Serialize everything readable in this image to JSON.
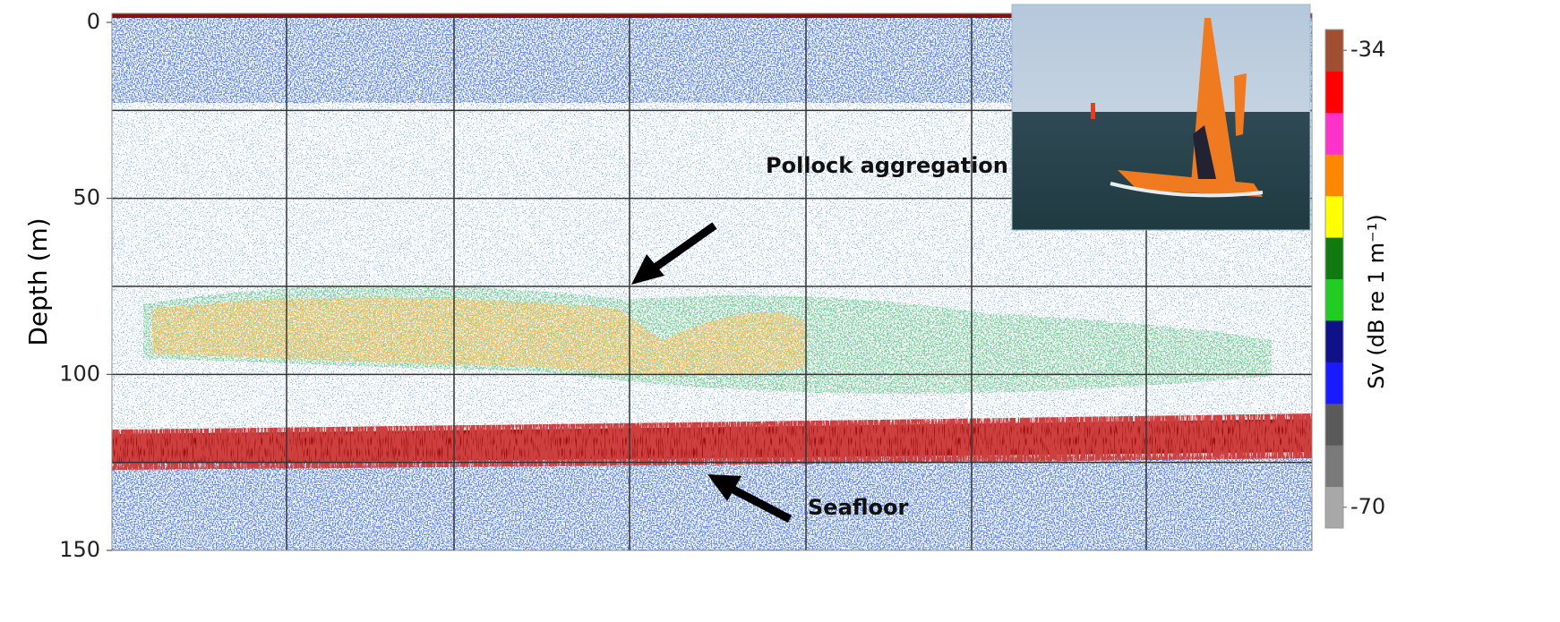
{
  "chart_data": {
    "type": "echogram",
    "y_label": "Depth (m)",
    "ylim": [
      0,
      150
    ],
    "yticks": [
      0,
      50,
      100,
      150
    ],
    "y_inverted": true,
    "grid": true,
    "grid_lines": [
      25,
      50,
      75,
      100,
      125
    ],
    "colorbar": {
      "label": "Sv (dB re 1 m⁻¹)",
      "lim": [
        -70,
        -34
      ],
      "ticks": [
        -70,
        -34
      ],
      "colors": [
        "#a8a8a8",
        "#7a7a7a",
        "#5a5a5a",
        "#1a1aff",
        "#101088",
        "#22cc22",
        "#107a10",
        "#ffff00",
        "#ff8800",
        "#ff33cc",
        "#ff0000",
        "#a05030"
      ]
    },
    "annotations": [
      "Pollock aggregation",
      "Seafloor"
    ]
  }
}
